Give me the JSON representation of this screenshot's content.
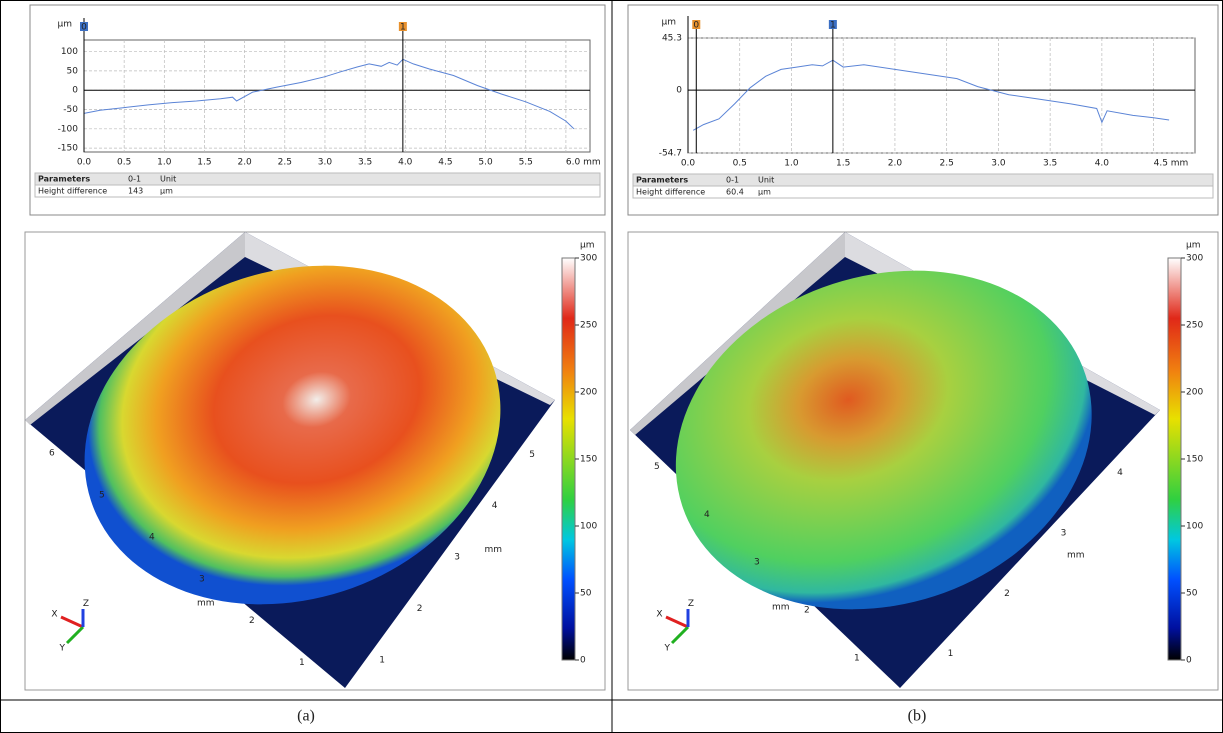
{
  "chart_data": [
    {
      "type": "line",
      "ylabel": "μm",
      "color": "#5b84d6",
      "xlim": [
        0,
        6.3
      ],
      "ylim": [
        -160,
        130
      ],
      "xticks": [
        {
          "value": 0,
          "label": "0.0"
        },
        0.5,
        {
          "value": 1,
          "label": "1.0"
        },
        1.5,
        {
          "value": 2,
          "label": "2.0"
        },
        2.5,
        {
          "value": 3,
          "label": "3.0"
        },
        3.5,
        {
          "value": 4,
          "label": "4.0"
        },
        4.5,
        {
          "value": 5,
          "label": "5.0"
        },
        5.5,
        {
          "value": 6,
          "label": "6.0 mm"
        }
      ],
      "yticks": [
        -150,
        -100,
        -50,
        0,
        50,
        100
      ],
      "grid": true,
      "x": [
        0,
        0.2,
        0.5,
        0.8,
        1.1,
        1.4,
        1.7,
        1.85,
        1.9,
        2.1,
        2.4,
        2.7,
        3.0,
        3.2,
        3.4,
        3.55,
        3.7,
        3.8,
        3.9,
        3.97,
        4.1,
        4.3,
        4.6,
        4.9,
        5.2,
        5.5,
        5.8,
        6.0,
        6.1
      ],
      "values": [
        -60,
        -52,
        -45,
        -38,
        -32,
        -28,
        -22,
        -18,
        -28,
        -5,
        8,
        20,
        35,
        48,
        60,
        68,
        62,
        72,
        65,
        80,
        68,
        55,
        38,
        12,
        -10,
        -30,
        -55,
        -80,
        -100
      ],
      "cursors": [
        {
          "label": "0",
          "x": 0,
          "color": "#3b6fc4"
        },
        {
          "label": "1",
          "x": 3.97,
          "color": "#e8912d"
        }
      ]
    },
    {
      "type": "line",
      "ylabel": "μm",
      "color": "#5b84d6",
      "xlim": [
        0,
        4.9
      ],
      "ylim": [
        -54.7,
        45.3
      ],
      "xticks": [
        {
          "value": 0,
          "label": "0.0"
        },
        0.5,
        {
          "value": 1,
          "label": "1.0"
        },
        1.5,
        {
          "value": 2,
          "label": "2.0"
        },
        2.5,
        {
          "value": 3,
          "label": "3.0"
        },
        3.5,
        {
          "value": 4,
          "label": "4.0"
        },
        {
          "value": 4.5,
          "label": "4.5 mm"
        }
      ],
      "yticks": [
        -54.7,
        0,
        45.3
      ],
      "grid": true,
      "x": [
        0.05,
        0.15,
        0.3,
        0.45,
        0.6,
        0.75,
        0.9,
        1.05,
        1.2,
        1.3,
        1.4,
        1.5,
        1.7,
        2.0,
        2.3,
        2.6,
        2.8,
        3.1,
        3.4,
        3.7,
        3.95,
        4.0,
        4.05,
        4.3,
        4.5,
        4.65
      ],
      "values": [
        -35,
        -30,
        -25,
        -12,
        2,
        12,
        18,
        20,
        22,
        21,
        26,
        20,
        22,
        18,
        14,
        10,
        3,
        -4,
        -8,
        -12,
        -16,
        -28,
        -18,
        -22,
        -24,
        -26
      ],
      "cursors": [
        {
          "label": "0",
          "x": 0.08,
          "color": "#e8912d"
        },
        {
          "label": "1",
          "x": 1.4,
          "color": "#3b6fc4"
        }
      ]
    }
  ],
  "tables": [
    {
      "header": [
        "Parameters",
        "0-1",
        "Unit"
      ],
      "rows": [
        [
          "Height difference",
          143,
          "μm"
        ]
      ]
    },
    {
      "header": [
        "Parameters",
        "0-1",
        "Unit"
      ],
      "rows": [
        [
          "Height difference",
          60.4,
          "μm"
        ]
      ]
    }
  ],
  "surfaces": [
    {
      "colorbar_unit": "μm",
      "colorbar_range": [
        0,
        300
      ],
      "colorbar_ticks": [
        0,
        50,
        100,
        150,
        200,
        250,
        300
      ],
      "length_unit": "mm",
      "edge1_ticks": [
        6,
        5,
        4,
        3,
        2,
        1
      ],
      "edge2_ticks": [
        1,
        2,
        3,
        4,
        5
      ],
      "axes": [
        "X",
        "Y",
        "Z"
      ]
    },
    {
      "colorbar_unit": "μm",
      "colorbar_range": [
        0,
        300
      ],
      "colorbar_ticks": [
        0,
        50,
        100,
        150,
        200,
        250,
        300
      ],
      "length_unit": "mm",
      "edge1_ticks": [
        5,
        4,
        3,
        2,
        1
      ],
      "edge2_ticks": [
        1,
        2,
        3,
        4
      ],
      "axes": [
        "X",
        "Y",
        "Z"
      ]
    }
  ],
  "captions": [
    "(a)",
    "(b)"
  ]
}
